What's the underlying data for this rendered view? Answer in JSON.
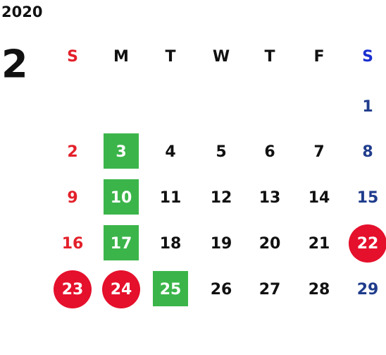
{
  "year": "2020",
  "month": "2",
  "weekdays": [
    "S",
    "M",
    "T",
    "W",
    "T",
    "F",
    "S"
  ],
  "highlight_colors": {
    "square": "#3bb54a",
    "circle": "#e5102c"
  },
  "weeks": [
    [
      null,
      null,
      null,
      null,
      null,
      null,
      "1"
    ],
    [
      "2",
      {
        "text": "3",
        "highlight": "square"
      },
      "4",
      "5",
      "6",
      "7",
      "8"
    ],
    [
      "9",
      {
        "text": "10",
        "highlight": "square"
      },
      "11",
      "12",
      "13",
      "14",
      "15"
    ],
    [
      "16",
      {
        "text": "17",
        "highlight": "square"
      },
      "18",
      "19",
      "20",
      "21",
      {
        "text": "22",
        "highlight": "circle"
      }
    ],
    [
      {
        "text": "23",
        "highlight": "circle"
      },
      {
        "text": "24",
        "highlight": "circle"
      },
      {
        "text": "25",
        "highlight": "square"
      },
      "26",
      "27",
      "28",
      "29"
    ]
  ]
}
